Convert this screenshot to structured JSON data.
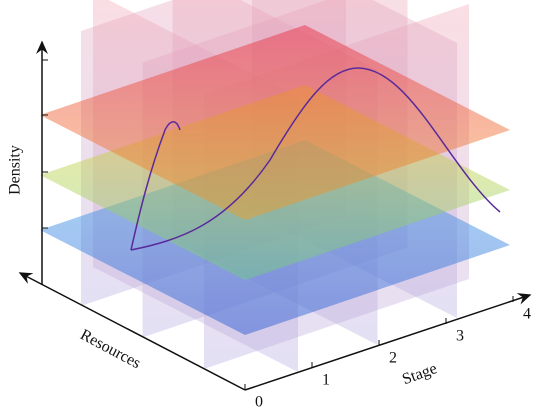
{
  "axes": {
    "density_label": "Density",
    "resources_label": "Resources",
    "stage_label": "Stage",
    "stage_ticks": [
      "0",
      "1",
      "2",
      "3",
      "4"
    ]
  }
}
